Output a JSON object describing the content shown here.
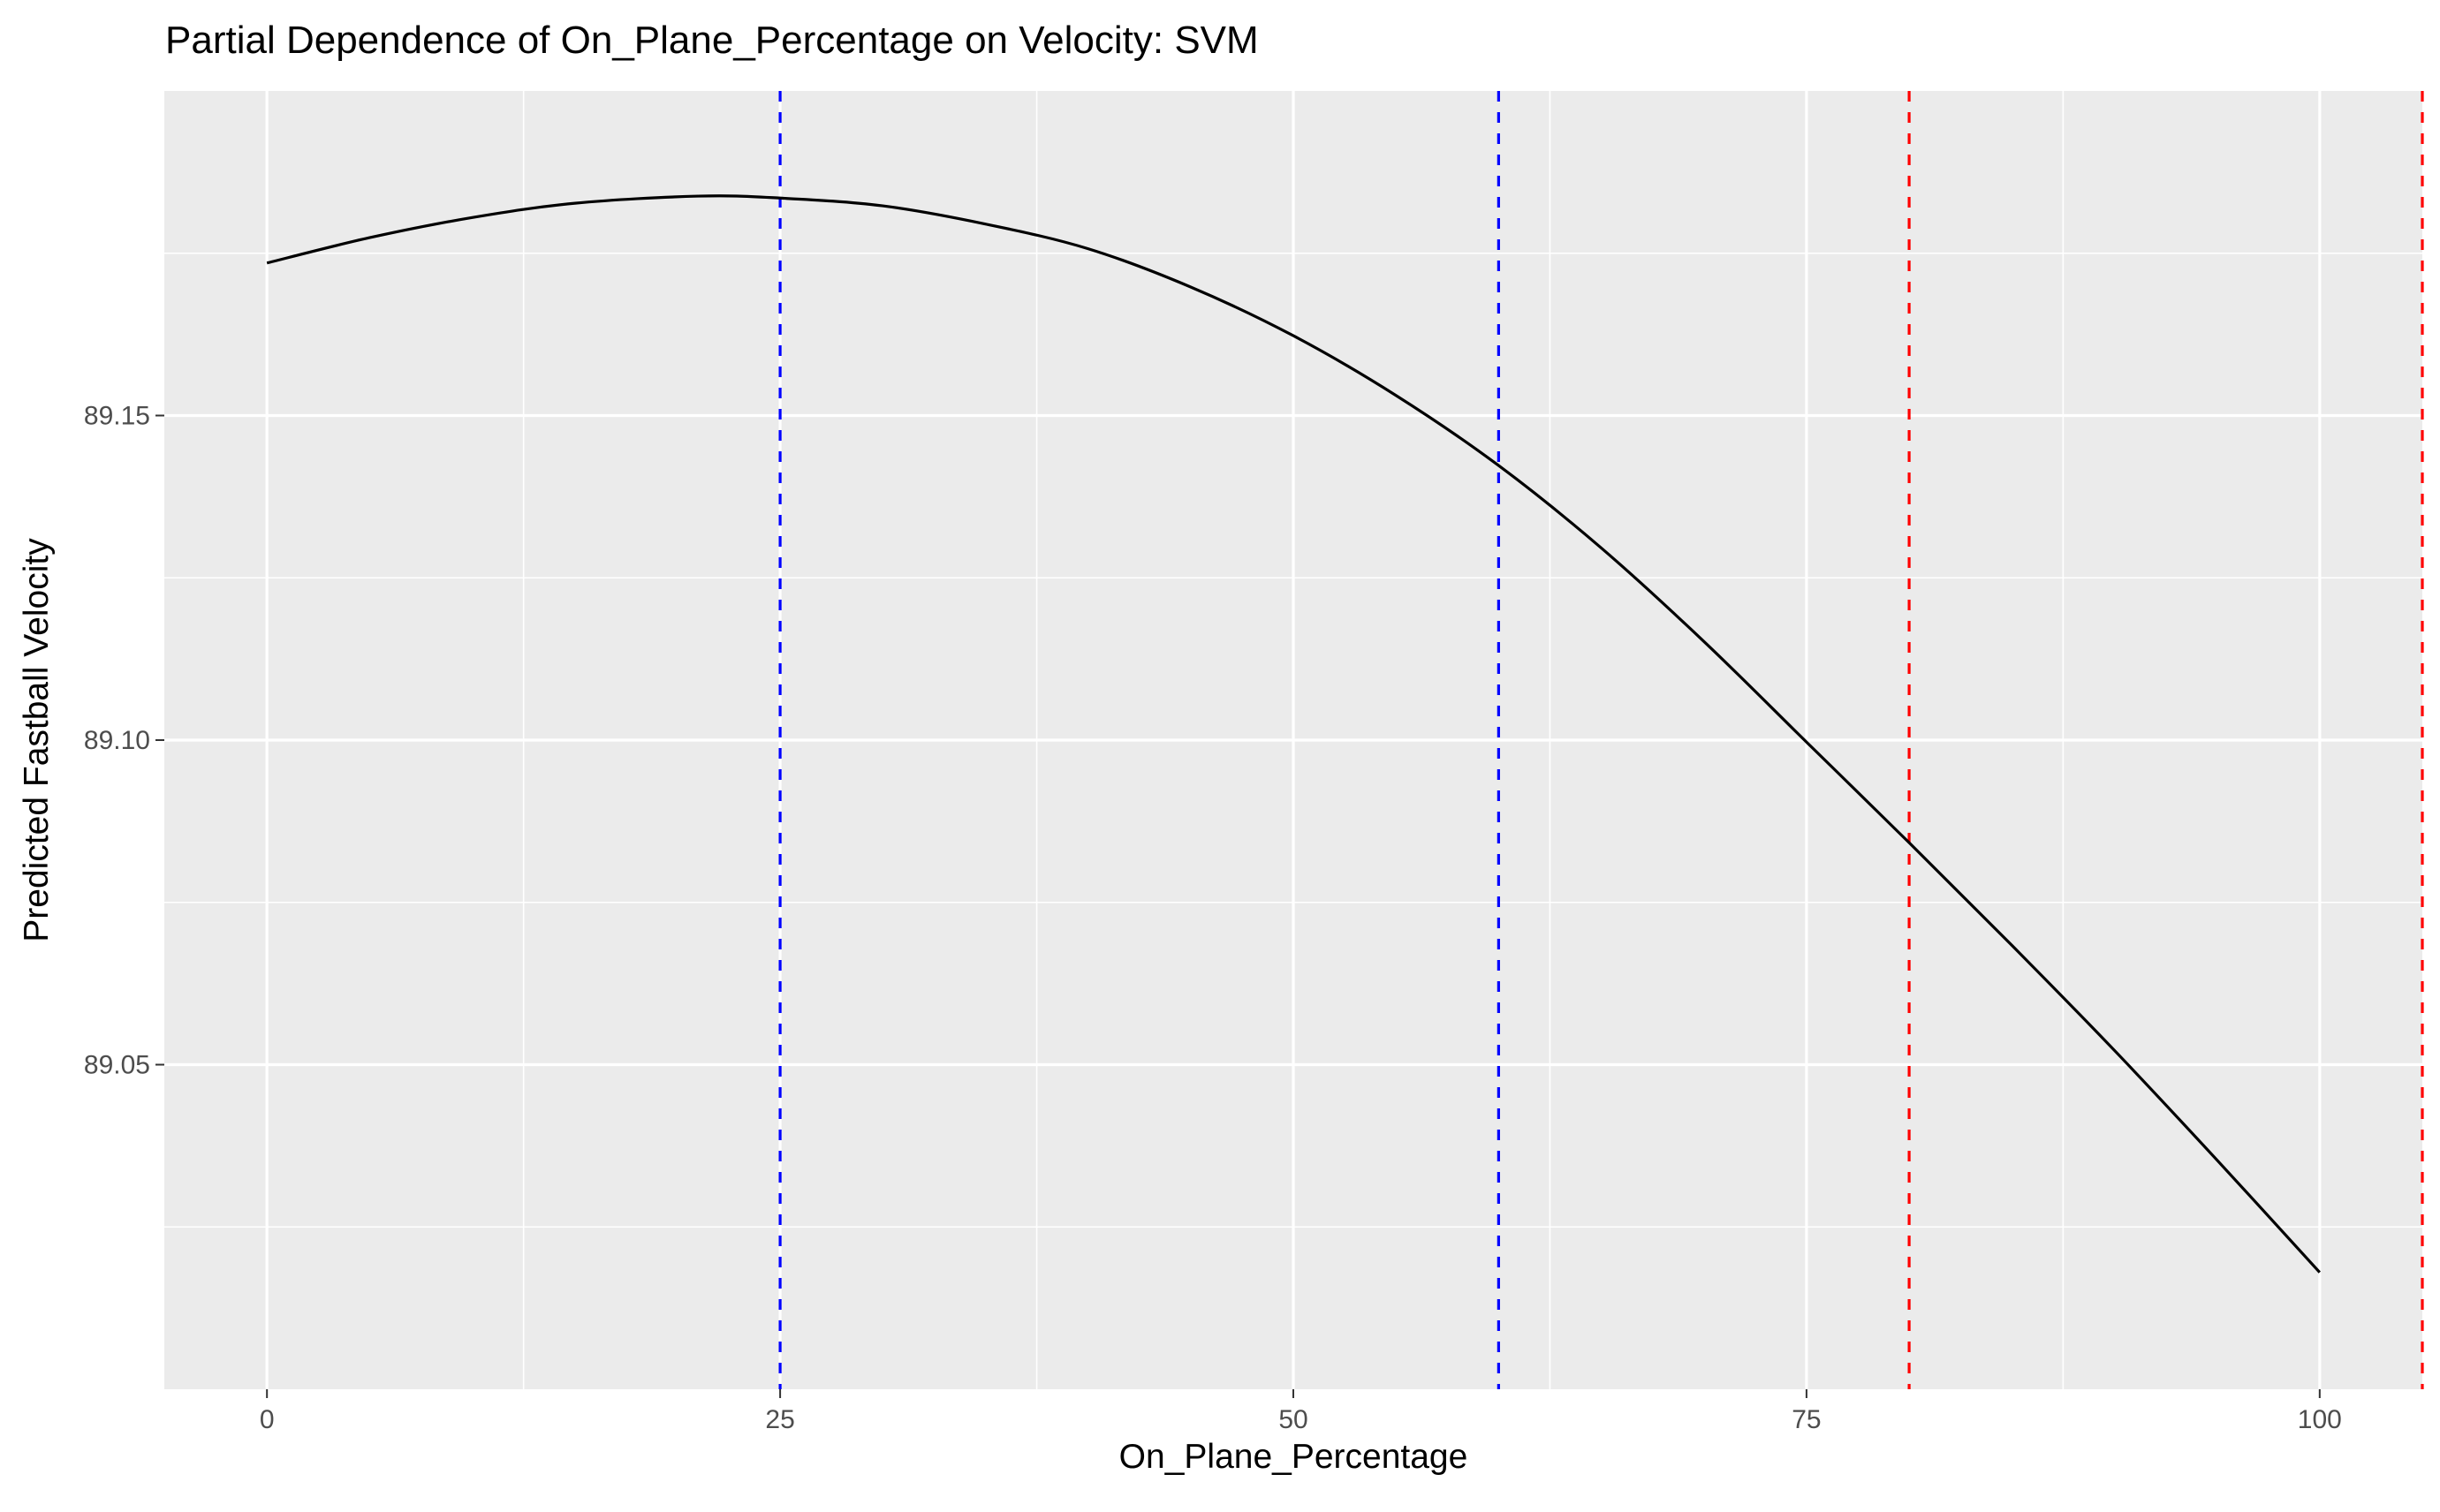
{
  "chart_data": {
    "type": "line",
    "title": "Partial Dependence of On_Plane_Percentage on Velocity: SVM",
    "xlabel": "On_Plane_Percentage",
    "ylabel": "Predicted Fastball Velocity",
    "xlim": [
      -5,
      105
    ],
    "ylim": [
      89.0,
      89.2
    ],
    "x_ticks": [
      0,
      25,
      50,
      75,
      100
    ],
    "x_tick_labels": [
      "0",
      "25",
      "50",
      "75",
      "100"
    ],
    "y_ticks": [
      89.05,
      89.1,
      89.15
    ],
    "y_tick_labels": [
      "89.05",
      "89.10",
      "89.15"
    ],
    "grid": true,
    "series": [
      {
        "color": "#000000",
        "x": [
          0,
          5,
          10,
          15,
          21,
          25,
          30,
          35,
          40,
          45,
          50,
          55,
          60,
          65,
          70,
          75,
          80,
          85,
          90,
          95,
          100
        ],
        "values": [
          89.1735,
          89.1774,
          89.1805,
          89.1827,
          89.1838,
          89.1835,
          89.1823,
          89.1795,
          89.1757,
          89.1698,
          89.1623,
          89.1531,
          89.1423,
          89.1296,
          89.1152,
          89.0997,
          89.0842,
          89.0684,
          89.0522,
          89.0353,
          89.018
        ]
      }
    ],
    "reference_lines": [
      {
        "x": 25,
        "color": "#0000ff",
        "style": "dashed"
      },
      {
        "x": 60,
        "color": "#0000ff",
        "style": "dashed"
      },
      {
        "x": 80,
        "color": "#ff0000",
        "style": "dashed"
      },
      {
        "x": 105,
        "color": "#ff0000",
        "style": "dashed"
      }
    ],
    "colors": {
      "panel_background": "#ebebeb",
      "grid": "#ffffff",
      "line": "#000000"
    }
  }
}
